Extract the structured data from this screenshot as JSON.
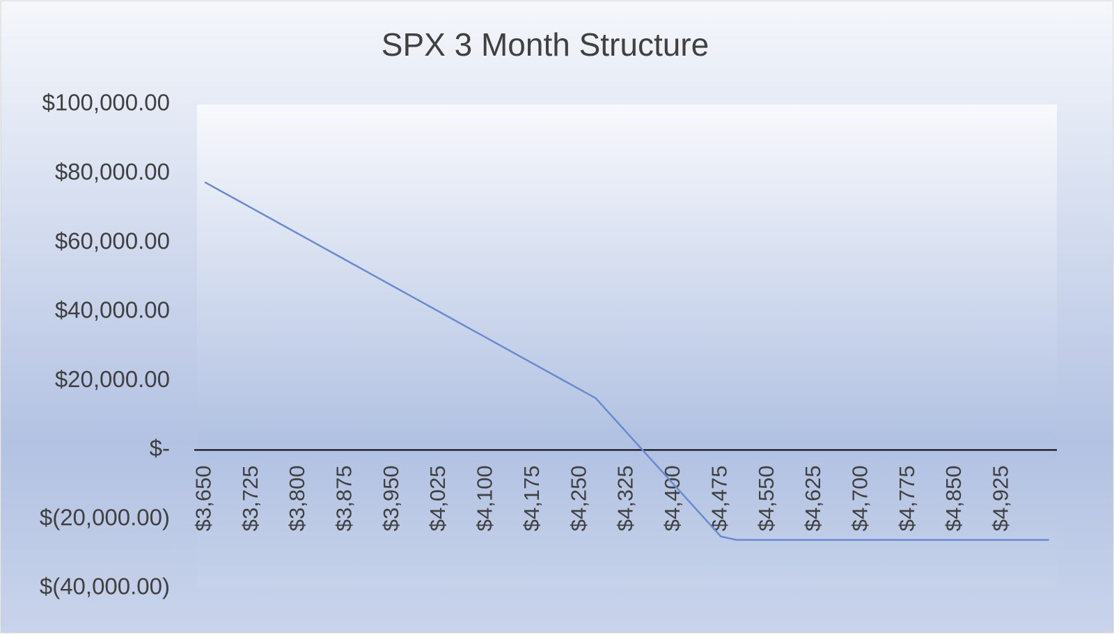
{
  "chart_data": {
    "type": "line",
    "title": "SPX 3 Month Structure",
    "categories": [
      "$3,650",
      null,
      null,
      "$3,725",
      null,
      null,
      "$3,800",
      null,
      null,
      "$3,875",
      null,
      null,
      "$3,950",
      null,
      null,
      "$4,025",
      null,
      null,
      "$4,100",
      null,
      null,
      "$4,175",
      null,
      null,
      "$4,250",
      null,
      null,
      "$4,325",
      null,
      null,
      "$4,400",
      null,
      null,
      "$4,475",
      null,
      null,
      "$4,550",
      null,
      null,
      "$4,625",
      null,
      null,
      "$4,700",
      null,
      null,
      "$4,775",
      null,
      null,
      "$4,850",
      null,
      null,
      "$4,925",
      null,
      null,
      null
    ],
    "values": [
      77500,
      75000,
      72500,
      70000,
      67500,
      65000,
      62500,
      60000,
      57500,
      55000,
      52500,
      50000,
      47500,
      45000,
      42500,
      40000,
      37500,
      35000,
      32500,
      30000,
      27500,
      25000,
      22500,
      20000,
      17500,
      15000,
      10000,
      5000,
      0,
      -5000,
      -10000,
      -15000,
      -20000,
      -25000,
      -26000,
      -26000,
      -26000,
      -26000,
      -26000,
      -26000,
      -26000,
      -26000,
      -26000,
      -26000,
      -26000,
      -26000,
      -26000,
      -26000,
      -26000,
      -26000,
      -26000,
      -26000,
      -26000,
      -26000,
      -26000
    ],
    "color": "#6a8ad0",
    "ylim": [
      -40000,
      100000
    ],
    "yticks": [
      {
        "value": -40000,
        "label": "$(40,000.00)"
      },
      {
        "value": -20000,
        "label": "$(20,000.00)"
      },
      {
        "value": 0,
        "label": "$-"
      },
      {
        "value": 20000,
        "label": "$20,000.00"
      },
      {
        "value": 40000,
        "label": "$40,000.00"
      },
      {
        "value": 60000,
        "label": "$60,000.00"
      },
      {
        "value": 80000,
        "label": "$80,000.00"
      },
      {
        "value": 100000,
        "label": "$100,000.00"
      }
    ],
    "grid": false
  }
}
